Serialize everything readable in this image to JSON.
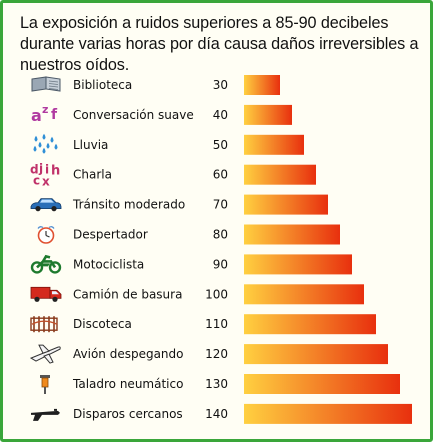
{
  "title": "La exposición a ruidos superiores a 85-90 decibeles durante varias horas por día causa daños irreversibles a nuestros oídos.",
  "colors": {
    "border": "#3aa63a",
    "bar_light": "#ffd040",
    "bar_dark": "#e8300e"
  },
  "chart_data": {
    "type": "bar",
    "orientation": "horizontal",
    "title": "La exposición a ruidos superiores a 85-90 decibeles durante varias horas por día causa daños irreversibles a nuestros oídos.",
    "categories": [
      "Biblioteca",
      "Conversación suave",
      "Lluvia",
      "Charla",
      "Tránsito moderado",
      "Despertador",
      "Motociclista",
      "Camión de basura",
      "Discoteca",
      "Avión despegando",
      "Taladro neumático",
      "Disparos cercanos"
    ],
    "icons": [
      "book-icon",
      "letters-azf-icon",
      "raindrops-icon",
      "letters-chatter-icon",
      "car-icon",
      "alarm-clock-icon",
      "motorcycle-icon",
      "garbage-truck-icon",
      "disco-icon",
      "airplane-icon",
      "jackhammer-icon",
      "gun-icon"
    ],
    "values": [
      30,
      40,
      50,
      60,
      70,
      80,
      90,
      100,
      110,
      120,
      130,
      140
    ],
    "xlabel": "",
    "ylabel": "",
    "grid": false
  }
}
